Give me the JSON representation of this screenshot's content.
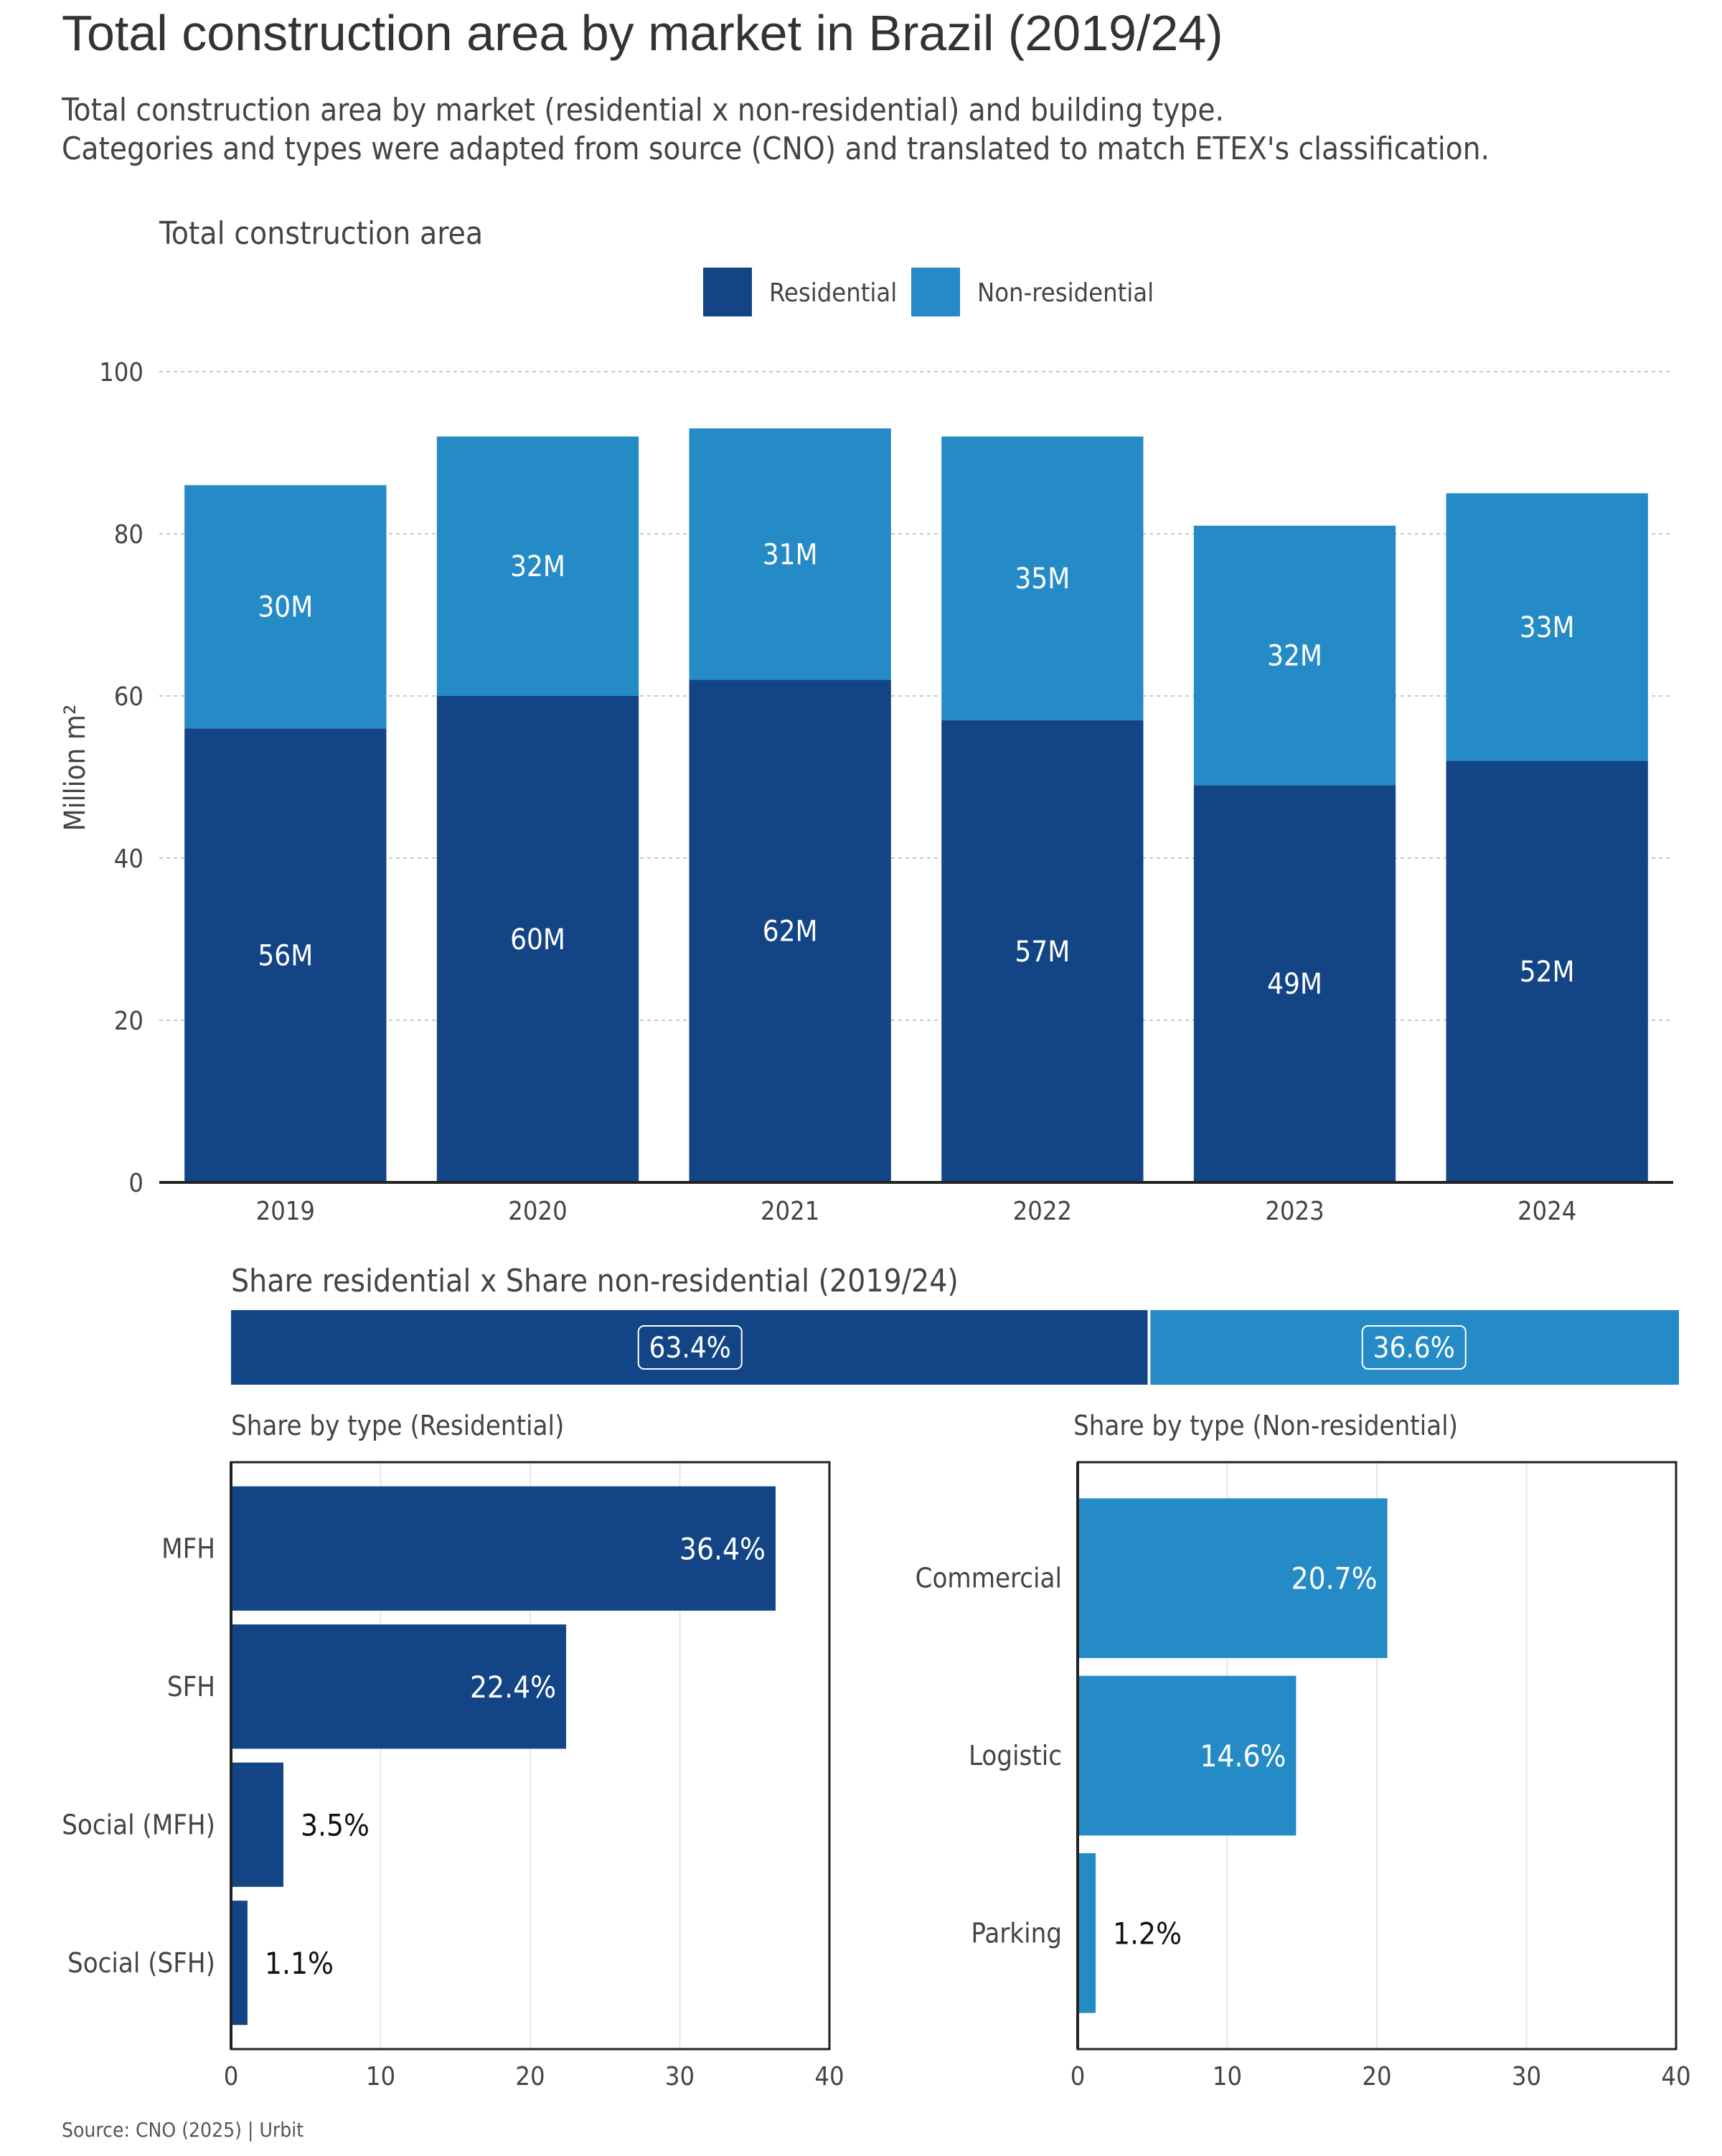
{
  "title": "Total construction area by market in Brazil (2019/24)",
  "subtitle_lines": [
    "Total construction area by market (residential x non-residential) and building type.",
    "Categories and types were adapted from source (CNO) and translated to match ETEX's classification."
  ],
  "source": "Source: CNO (2025) | Urbit",
  "colors": {
    "residential": "#134586",
    "non_residential": "#258bc6"
  },
  "chart_data": [
    {
      "type": "bar",
      "stacked": true,
      "title": "Total construction area",
      "ylabel": "Million m²",
      "xlabel": "",
      "ylim": [
        0,
        100
      ],
      "yticks": [
        0,
        20,
        40,
        60,
        80,
        100
      ],
      "grid": "horizontal-dashed",
      "legend_placement": "top-center",
      "categories": [
        "2019",
        "2020",
        "2021",
        "2022",
        "2023",
        "2024"
      ],
      "series": [
        {
          "name": "Residential",
          "values": [
            56,
            60,
            62,
            57,
            49,
            52
          ],
          "labels": [
            "56M",
            "60M",
            "62M",
            "57M",
            "49M",
            "52M"
          ]
        },
        {
          "name": "Non-residential",
          "values": [
            30,
            32,
            31,
            35,
            32,
            33
          ],
          "labels": [
            "30M",
            "32M",
            "31M",
            "35M",
            "32M",
            "33M"
          ]
        }
      ]
    },
    {
      "type": "bar",
      "orientation": "horizontal",
      "stacked": true,
      "title": "Share residential x Share non-residential (2019/24)",
      "series": [
        {
          "name": "Residential",
          "value": 63.4,
          "label": "63.4%"
        },
        {
          "name": "Non-residential",
          "value": 36.6,
          "label": "36.6%"
        }
      ]
    },
    {
      "type": "bar",
      "orientation": "horizontal",
      "title": "Share by type (Residential)",
      "xlim": [
        0,
        40
      ],
      "xticks": [
        0,
        10,
        20,
        30,
        40
      ],
      "grid": "vertical",
      "categories": [
        "MFH",
        "SFH",
        "Social (MFH)",
        "Social (SFH)"
      ],
      "values": [
        36.4,
        22.4,
        3.5,
        1.1
      ],
      "labels": [
        "36.4%",
        "22.4%",
        "3.5%",
        "1.1%"
      ]
    },
    {
      "type": "bar",
      "orientation": "horizontal",
      "title": "Share by type (Non-residential)",
      "xlim": [
        0,
        40
      ],
      "xticks": [
        0,
        10,
        20,
        30,
        40
      ],
      "grid": "vertical",
      "categories": [
        "Commercial",
        "Logistic",
        "Parking"
      ],
      "values": [
        20.7,
        14.6,
        1.2
      ],
      "labels": [
        "20.7%",
        "14.6%",
        "1.2%"
      ]
    }
  ]
}
